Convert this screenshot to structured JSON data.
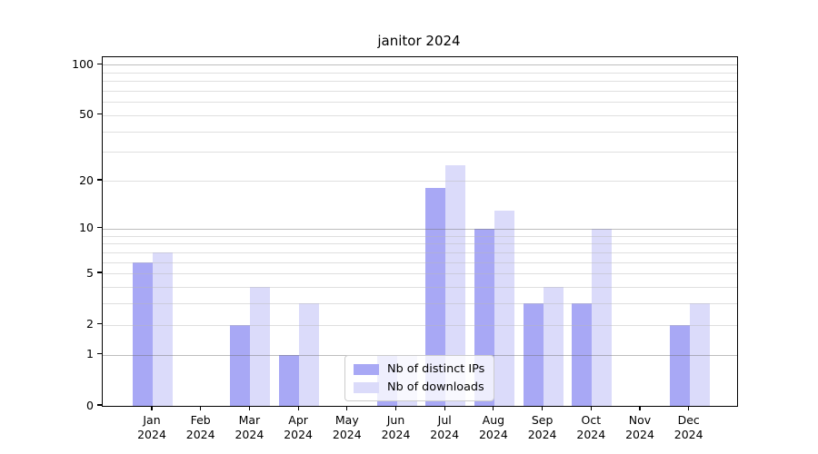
{
  "figure": {
    "title": "janitor 2024"
  },
  "chart_data": {
    "type": "bar",
    "title": "janitor 2024",
    "categories": [
      "Jan",
      "Feb",
      "Mar",
      "Apr",
      "May",
      "Jun",
      "Jul",
      "Aug",
      "Sep",
      "Oct",
      "Nov",
      "Dec"
    ],
    "category_year": "2024",
    "series": [
      {
        "name": "Nb of distinct IPs",
        "color": "#a8a8f5",
        "values": [
          6,
          0,
          2,
          1,
          0,
          1,
          18,
          10,
          3,
          3,
          0,
          2
        ]
      },
      {
        "name": "Nb of downloads",
        "color": "#dbdbfa",
        "values": [
          7,
          0,
          4,
          3,
          0,
          1,
          25,
          13,
          4,
          10,
          0,
          3
        ]
      }
    ],
    "xlabel": "",
    "ylabel": "",
    "yscale": "log1p",
    "ylim": [
      0,
      110
    ],
    "yticks": [
      0,
      1,
      2,
      5,
      10,
      20,
      50,
      100
    ],
    "major_gridline_values": [
      1,
      10,
      100
    ],
    "minor_gridline_values": [
      2,
      3,
      4,
      5,
      6,
      7,
      8,
      9,
      20,
      30,
      40,
      50,
      60,
      70,
      80,
      90
    ],
    "grid": true,
    "legend_position": "lower center"
  },
  "legend": {
    "items": [
      {
        "label": "Nb of distinct IPs",
        "color": "#a8a8f5"
      },
      {
        "label": "Nb of downloads",
        "color": "#dbdbfa"
      }
    ]
  },
  "colors": {
    "background": "#ffffff",
    "spine": "#000000",
    "text": "#000000",
    "major_grid": "#b0b0b0",
    "minor_grid": "#e3e3e3",
    "bar_distinct_ips": "#a8a8f5",
    "bar_downloads": "#dbdbfa"
  }
}
